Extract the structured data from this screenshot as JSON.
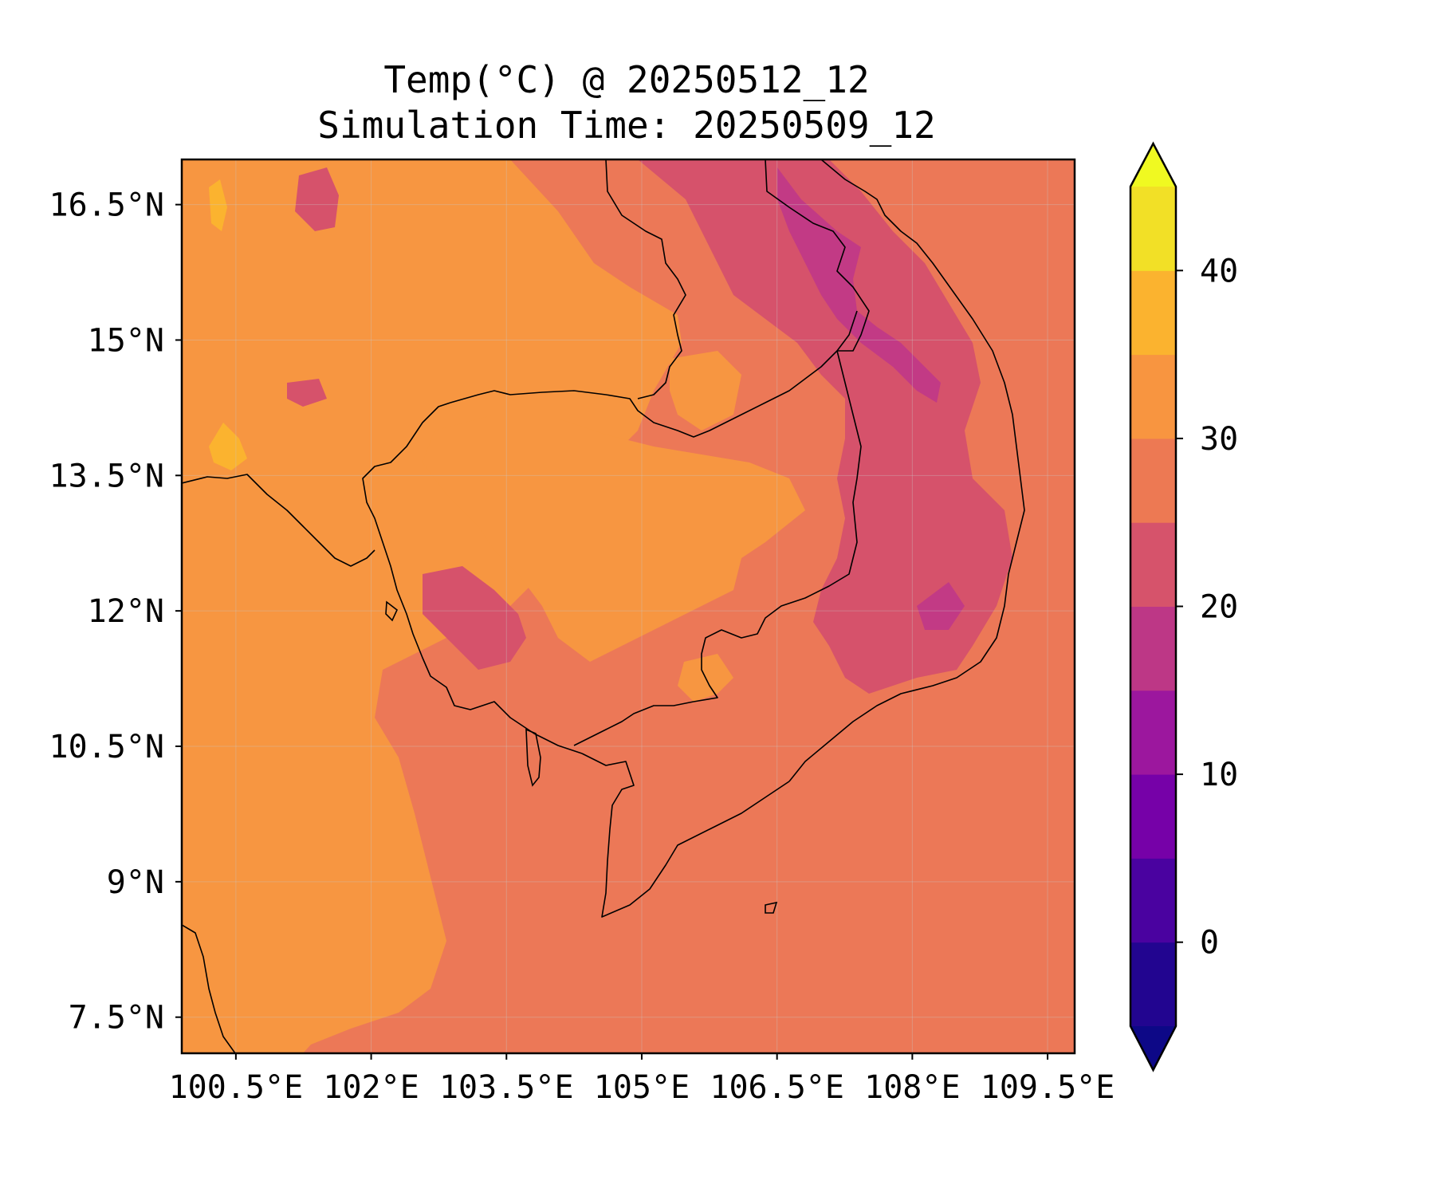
{
  "title": {
    "line1": "Temp(°C) @ 20250512_12",
    "line2": "Simulation Time: 20250509_12"
  },
  "map": {
    "lon_range": [
      99.9,
      109.8
    ],
    "lat_range": [
      7.1,
      17.0
    ],
    "lon_ticks": [
      100.5,
      102,
      103.5,
      105,
      106.5,
      108,
      109.5
    ],
    "lat_ticks": [
      7.5,
      9,
      10.5,
      12,
      13.5,
      15,
      16.5
    ],
    "lon_tick_labels": [
      "100.5°E",
      "102°E",
      "103.5°E",
      "105°E",
      "106.5°E",
      "108°E",
      "109.5°E"
    ],
    "lat_tick_labels": [
      "7.5°N",
      "9°N",
      "10.5°N",
      "12°N",
      "13.5°N",
      "15°N",
      "16.5°N"
    ],
    "gridlines": true
  },
  "colorbar": {
    "levels": [
      -5,
      0,
      5,
      10,
      15,
      20,
      25,
      30,
      35,
      40,
      45
    ],
    "colors": [
      "#220590",
      "#4a02a0",
      "#7601a8",
      "#9c179e",
      "#bd3786",
      "#d6536b",
      "#ed7953",
      "#f89540",
      "#fbb32f",
      "#f2e026"
    ],
    "under_color": "#0d0887",
    "over_color": "#f0f921",
    "extend": "both",
    "tick_values": [
      0,
      10,
      20,
      30,
      40
    ],
    "tick_labels": [
      "0",
      "10",
      "20",
      "30",
      "40"
    ]
  },
  "colors": {
    "sea": "#ec7857",
    "warm": "#f79641",
    "cool": "#d6526b",
    "cold": "#c23a85",
    "hot": "#fbb32f",
    "coast": "#000000"
  }
}
